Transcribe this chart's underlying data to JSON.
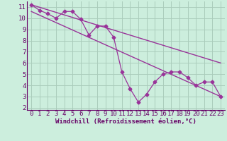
{
  "xlabel": "Windchill (Refroidissement éolien,°C)",
  "bg_color": "#cceedd",
  "grid_color": "#aaccbb",
  "line_color": "#993399",
  "font_color": "#660066",
  "xlim": [
    -0.5,
    23.5
  ],
  "ylim": [
    1.8,
    11.5
  ],
  "xticks": [
    0,
    1,
    2,
    3,
    4,
    5,
    6,
    7,
    8,
    9,
    10,
    11,
    12,
    13,
    14,
    15,
    16,
    17,
    18,
    19,
    20,
    21,
    22,
    23
  ],
  "yticks": [
    2,
    3,
    4,
    5,
    6,
    7,
    8,
    9,
    10,
    11
  ],
  "data_x": [
    0,
    1,
    2,
    3,
    4,
    5,
    6,
    7,
    8,
    9,
    10,
    11,
    12,
    13,
    14,
    15,
    16,
    17,
    18,
    19,
    20,
    21,
    22,
    23
  ],
  "data_y": [
    11.2,
    10.7,
    10.4,
    10.0,
    10.6,
    10.6,
    9.9,
    8.5,
    9.3,
    9.3,
    8.3,
    5.2,
    3.7,
    2.5,
    3.2,
    4.3,
    5.0,
    5.2,
    5.2,
    4.7,
    4.0,
    4.3,
    4.3,
    3.0
  ],
  "line1_x": [
    0,
    23
  ],
  "line1_y": [
    11.2,
    6.0
  ],
  "line2_x": [
    0,
    23
  ],
  "line2_y": [
    10.6,
    3.0
  ],
  "xlabel_fontsize": 6.5,
  "tick_fontsize": 6.5
}
